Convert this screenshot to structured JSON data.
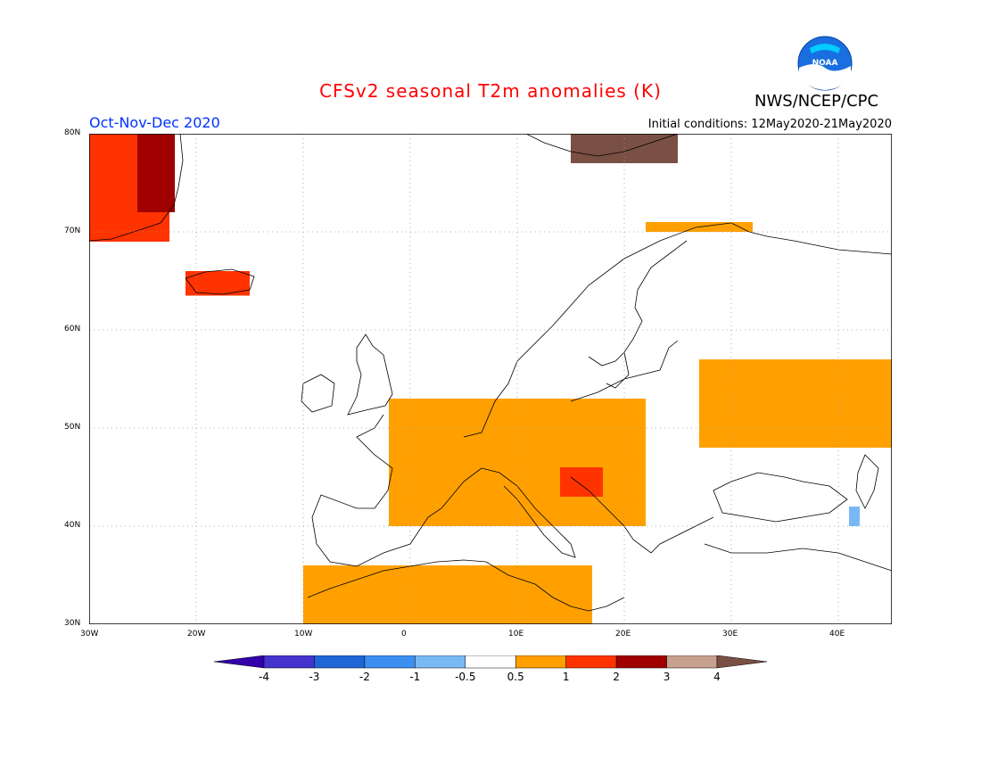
{
  "header": {
    "title": "CFSv2 seasonal T2m anomalies (K)",
    "agency": "NWS/NCEP/CPC",
    "period": "Oct-Nov-Dec 2020",
    "initial_conditions": "Initial conditions: 12May2020-21May2020",
    "logo_text": "NOAA"
  },
  "map": {
    "lat_labels": [
      "80N",
      "70N",
      "60N",
      "50N",
      "40N",
      "30N"
    ],
    "lon_labels": [
      "30W",
      "20W",
      "10W",
      "0",
      "10E",
      "20E",
      "30E",
      "40E"
    ],
    "lat_values": [
      80,
      70,
      60,
      50,
      40,
      30
    ],
    "lon_values": [
      -30,
      -20,
      -10,
      0,
      10,
      20,
      30,
      40
    ],
    "extent": {
      "lon_min": -30,
      "lon_max": 45,
      "lat_min": 30,
      "lat_max": 80
    },
    "anomaly_regions": [
      {
        "name": "greenland",
        "level": 2,
        "lon": [
          -30,
          -22.5
        ],
        "lat": [
          69,
          80
        ]
      },
      {
        "name": "greenland-east-coast",
        "level": 3,
        "lon": [
          -25.5,
          -22
        ],
        "lat": [
          72,
          80
        ]
      },
      {
        "name": "iceland",
        "level": 2,
        "lon": [
          -21,
          -15
        ],
        "lat": [
          63.5,
          66
        ]
      },
      {
        "name": "svalbard",
        "level": 4,
        "lon": [
          15,
          25
        ],
        "lat": [
          77,
          80
        ]
      },
      {
        "name": "central-europe",
        "level": 1,
        "lon": [
          -2,
          22
        ],
        "lat": [
          40,
          53
        ]
      },
      {
        "name": "eastern-europe",
        "level": 1,
        "lon": [
          27,
          45
        ],
        "lat": [
          48,
          57
        ]
      },
      {
        "name": "north-africa",
        "level": 1,
        "lon": [
          -10,
          17
        ],
        "lat": [
          30,
          36
        ]
      },
      {
        "name": "scandinavia-north-coast",
        "level": 1,
        "lon": [
          22,
          32
        ],
        "lat": [
          70,
          71
        ]
      },
      {
        "name": "croatia-bosnia",
        "level": 2,
        "lon": [
          14,
          18
        ],
        "lat": [
          43,
          46
        ]
      },
      {
        "name": "caucasus",
        "level": -1,
        "lon": [
          41,
          42
        ],
        "lat": [
          40,
          42
        ]
      }
    ]
  },
  "colorbar": {
    "labels": [
      "-4",
      "-3",
      "-2",
      "-1",
      "-0.5",
      "0.5",
      "1",
      "2",
      "3",
      "4"
    ],
    "colors": [
      "#3300aa",
      "#4433cc",
      "#1f66d6",
      "#3b8ff0",
      "#7ab8f5",
      "#ffffff",
      "#ffa000",
      "#ff3300",
      "#a00000",
      "#c8a090",
      "#7a5044"
    ]
  },
  "colors": {
    "land_outline": "#000000",
    "grid": "#888888",
    "title": "#ff0000",
    "period": "#0033ff"
  }
}
